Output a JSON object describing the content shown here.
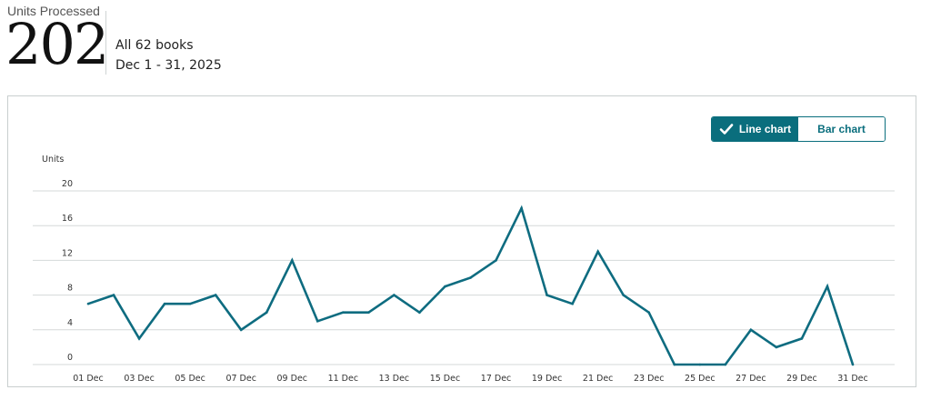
{
  "summary": {
    "metric_label": "Units Processed",
    "metric_value": "202",
    "books_label": "All 62 books",
    "date_range": "Dec 1 - 31, 2025"
  },
  "chart_toggle": {
    "line_label": "Line chart",
    "bar_label": "Bar chart",
    "active": "line"
  },
  "colors": {
    "series": "#0e6c80",
    "accent": "#0a6e7d",
    "grid": "#d5d9d9"
  },
  "chart_data": {
    "type": "line",
    "ylabel": "Units",
    "ylim": [
      0,
      20
    ],
    "yticks": [
      0,
      4,
      8,
      12,
      16,
      20
    ],
    "x": [
      1,
      2,
      3,
      4,
      5,
      6,
      7,
      8,
      9,
      10,
      11,
      12,
      13,
      14,
      15,
      16,
      17,
      18,
      19,
      20,
      21,
      22,
      23,
      24,
      25,
      26,
      27,
      28,
      29,
      30,
      31
    ],
    "xtick_labels": [
      "01 Dec",
      "03 Dec",
      "05 Dec",
      "07 Dec",
      "09 Dec",
      "11 Dec",
      "13 Dec",
      "15 Dec",
      "17 Dec",
      "19 Dec",
      "21 Dec",
      "23 Dec",
      "25 Dec",
      "27 Dec",
      "29 Dec",
      "31 Dec"
    ],
    "series": [
      {
        "values": [
          7,
          8,
          3,
          7,
          7,
          8,
          4,
          6,
          12,
          5,
          6,
          6,
          8,
          6,
          9,
          10,
          12,
          18,
          8,
          7,
          13,
          8,
          6,
          0,
          0,
          0,
          4,
          2,
          3,
          9,
          0
        ]
      }
    ],
    "grid": true
  }
}
